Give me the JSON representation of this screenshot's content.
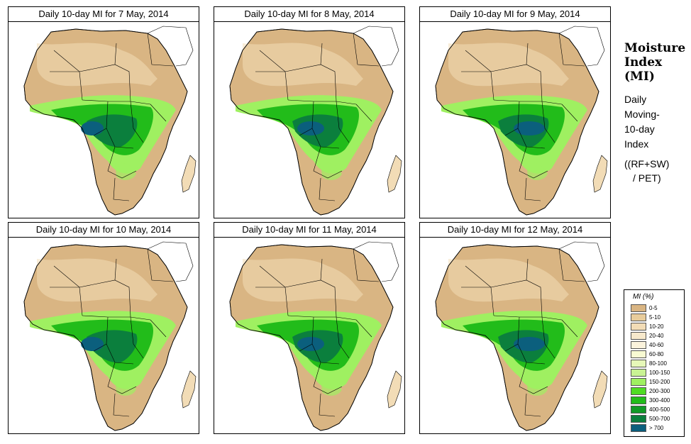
{
  "panels": [
    {
      "title": "Daily 10-day MI for  7 May, 2014"
    },
    {
      "title": "Daily 10-day MI for  8 May, 2014"
    },
    {
      "title": "Daily 10-day MI for  9 May, 2014"
    },
    {
      "title": "Daily 10-day MI for  10 May, 2014"
    },
    {
      "title": "Daily 10-day MI for  11 May, 2014"
    },
    {
      "title": "Daily 10-day MI for  12 May, 2014"
    }
  ],
  "sidebar": {
    "title_line1": "Moisture",
    "title_line2": "Index",
    "title_line3": "(MI)",
    "desc_line1": "Daily",
    "desc_line2": "Moving-",
    "desc_line3": "10-day",
    "desc_line4": "Index",
    "formula_line1": "((RF+SW)",
    "formula_line2": "/ PET)"
  },
  "legend": {
    "title": "MI (%)",
    "items": [
      {
        "label": "0-5",
        "color": "#d9b583"
      },
      {
        "label": "5-10",
        "color": "#e8cc9b"
      },
      {
        "label": "10-20",
        "color": "#f2dcb6"
      },
      {
        "label": "20-40",
        "color": "#f7e9cc"
      },
      {
        "label": "40-60",
        "color": "#fbf3dc"
      },
      {
        "label": "60-80",
        "color": "#f8fbd2"
      },
      {
        "label": "80-100",
        "color": "#e6f8b8"
      },
      {
        "label": "100-150",
        "color": "#c9f394"
      },
      {
        "label": "150-200",
        "color": "#9ff061"
      },
      {
        "label": "200-300",
        "color": "#4fdc23"
      },
      {
        "label": "300-400",
        "color": "#22bc1a"
      },
      {
        "label": "400-500",
        "color": "#119a26"
      },
      {
        "label": "500-700",
        "color": "#0b7f3d"
      },
      {
        "label": "> 700",
        "color": "#0b5f7d"
      }
    ]
  },
  "map_colors": {
    "land_dry": "#d9b583",
    "land_semi": "#f2dcb6",
    "water": "#ffffff",
    "wet_light": "#9ff061",
    "wet_mid": "#22bc1a",
    "wet_dark": "#0b7f3d",
    "wet_max": "#0b5f7d"
  }
}
